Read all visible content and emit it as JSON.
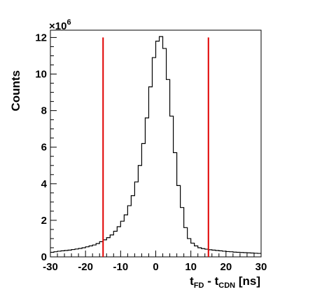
{
  "chart_data": {
    "type": "histogram",
    "title": "",
    "xlabel": {
      "main": "t",
      "sub1": "FD",
      "mid": " - t",
      "sub2": "CDN",
      "unit": " [ns]"
    },
    "ylabel": "Counts",
    "y_multiplier": {
      "base": "×10",
      "exp": "6"
    },
    "xlim": [
      -30,
      30
    ],
    "ylim": [
      0,
      12.4
    ],
    "x_ticks": [
      "-30",
      "-20",
      "-10",
      "0",
      "10",
      "20",
      "30"
    ],
    "y_ticks": [
      "0",
      "2",
      "4",
      "6",
      "8",
      "10",
      "12"
    ],
    "bin_edges_start": -30,
    "bin_width": 1,
    "values": [
      0.25,
      0.28,
      0.31,
      0.33,
      0.35,
      0.37,
      0.4,
      0.43,
      0.46,
      0.5,
      0.55,
      0.6,
      0.65,
      0.73,
      0.83,
      0.93,
      1.05,
      1.2,
      1.4,
      1.65,
      1.95,
      2.3,
      2.8,
      3.35,
      4.1,
      5.0,
      6.2,
      7.6,
      9.3,
      10.9,
      11.8,
      12.05,
      11.4,
      9.7,
      7.7,
      5.7,
      3.9,
      2.7,
      1.6,
      1.0,
      0.75,
      0.6,
      0.5,
      0.45,
      0.42,
      0.39,
      0.37,
      0.35,
      0.33,
      0.31,
      0.29,
      0.28,
      0.26,
      0.25,
      0.24,
      0.23,
      0.22,
      0.21,
      0.2,
      0.19
    ],
    "cut_lines": [
      {
        "x": -15,
        "y_top": 12.0,
        "color": "#e00000"
      },
      {
        "x": 15,
        "y_top": 12.0,
        "color": "#e00000"
      }
    ],
    "line_color": "#000000",
    "grid": false
  }
}
